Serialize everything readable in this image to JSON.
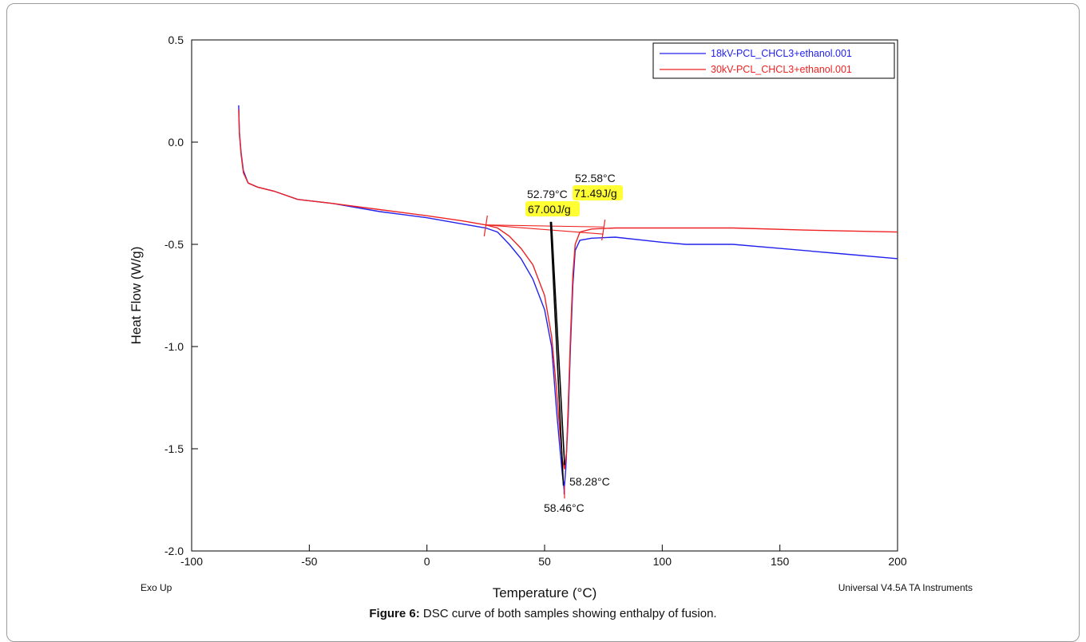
{
  "chart_data": {
    "type": "line",
    "xlabel": "Temperature (°C)",
    "ylabel": "Heat Flow (W/g)",
    "xlim": [
      -100,
      200
    ],
    "ylim": [
      -2.0,
      0.5
    ],
    "x_ticks": [
      -100,
      -50,
      0,
      50,
      100,
      150,
      200
    ],
    "y_ticks": [
      0.5,
      0.0,
      -0.5,
      -1.0,
      -1.5,
      -2.0
    ],
    "x_tick_labels": [
      "-100",
      "-50",
      "0",
      "50",
      "100",
      "150",
      "200"
    ],
    "y_tick_labels": [
      "0.5",
      "0.0",
      "-0.5",
      "-1.0",
      "-1.5",
      "-2.0"
    ],
    "grid": false,
    "legend_position": "top-right",
    "series": [
      {
        "name": "18kV-PCL_CHCL3+ethanol.001",
        "color": "#2222ee",
        "points": [
          [
            -80,
            0.18
          ],
          [
            -79.7,
            0.05
          ],
          [
            -79,
            -0.05
          ],
          [
            -78,
            -0.14
          ],
          [
            -76,
            -0.2
          ],
          [
            -72,
            -0.22
          ],
          [
            -65,
            -0.24
          ],
          [
            -55,
            -0.28
          ],
          [
            -40,
            -0.3
          ],
          [
            -20,
            -0.34
          ],
          [
            0,
            -0.37
          ],
          [
            15,
            -0.4
          ],
          [
            25,
            -0.42
          ],
          [
            30,
            -0.44
          ],
          [
            35,
            -0.5
          ],
          [
            40,
            -0.57
          ],
          [
            45,
            -0.67
          ],
          [
            50,
            -0.82
          ],
          [
            53,
            -1.0
          ],
          [
            55,
            -1.3
          ],
          [
            56.5,
            -1.5
          ],
          [
            57.5,
            -1.62
          ],
          [
            58.3,
            -1.7
          ],
          [
            59,
            -1.6
          ],
          [
            60,
            -1.35
          ],
          [
            61,
            -1.0
          ],
          [
            62,
            -0.7
          ],
          [
            63,
            -0.53
          ],
          [
            65,
            -0.48
          ],
          [
            70,
            -0.47
          ],
          [
            80,
            -0.465
          ],
          [
            100,
            -0.49
          ],
          [
            110,
            -0.5
          ],
          [
            130,
            -0.5
          ],
          [
            150,
            -0.52
          ],
          [
            175,
            -0.545
          ],
          [
            200,
            -0.57
          ]
        ]
      },
      {
        "name": "30kV-PCL_CHCL3+ethanol.001",
        "color": "#ee2222",
        "points": [
          [
            -80,
            0.16
          ],
          [
            -79.7,
            0.04
          ],
          [
            -79,
            -0.06
          ],
          [
            -78,
            -0.15
          ],
          [
            -76,
            -0.2
          ],
          [
            -72,
            -0.22
          ],
          [
            -65,
            -0.24
          ],
          [
            -55,
            -0.28
          ],
          [
            -40,
            -0.3
          ],
          [
            -20,
            -0.33
          ],
          [
            0,
            -0.36
          ],
          [
            15,
            -0.385
          ],
          [
            25,
            -0.405
          ],
          [
            30,
            -0.42
          ],
          [
            35,
            -0.46
          ],
          [
            40,
            -0.52
          ],
          [
            45,
            -0.6
          ],
          [
            50,
            -0.75
          ],
          [
            53,
            -0.95
          ],
          [
            55,
            -1.2
          ],
          [
            56.5,
            -1.42
          ],
          [
            57.5,
            -1.55
          ],
          [
            58.5,
            -1.6
          ],
          [
            59.3,
            -1.52
          ],
          [
            60,
            -1.3
          ],
          [
            61,
            -0.95
          ],
          [
            62,
            -0.65
          ],
          [
            63,
            -0.5
          ],
          [
            65,
            -0.44
          ],
          [
            70,
            -0.425
          ],
          [
            80,
            -0.42
          ],
          [
            100,
            -0.42
          ],
          [
            130,
            -0.42
          ],
          [
            160,
            -0.43
          ],
          [
            200,
            -0.44
          ]
        ]
      }
    ],
    "baselines": [
      {
        "color": "#ee2222",
        "x1": 25,
        "y1": -0.405,
        "x2": 75,
        "y2": -0.45
      },
      {
        "color": "#ee2222",
        "x1": 25,
        "y1": -0.405,
        "x2": 75,
        "y2": -0.415
      }
    ],
    "limit_ticks": [
      {
        "color": "#ee2222",
        "x": 25,
        "y": -0.41
      },
      {
        "color": "#ee2222",
        "x": 75,
        "y": -0.43
      }
    ],
    "onset_lines": [
      {
        "color": "#000000",
        "x1": 52.5,
        "y1": -0.39,
        "x2": 58.0,
        "y2": -1.68
      },
      {
        "color": "#000000",
        "x1": 52.9,
        "y1": -0.39,
        "x2": 58.5,
        "y2": -1.58
      }
    ],
    "peak_ticks": [
      {
        "color": "#2222ee",
        "x": 58.28,
        "y": -1.7
      },
      {
        "color": "#ee2222",
        "x": 58.46,
        "y": -1.72
      }
    ],
    "annotations": {
      "onset_30kv_temp": "52.58°C",
      "enthalpy_30kv": "71.49J/g",
      "onset_18kv_temp": "52.79°C",
      "enthalpy_18kv": "67.00J/g",
      "peak_18kv": "58.28°C",
      "peak_30kv": "58.46°C",
      "highlight_color": "#ffff33"
    },
    "footer_left": "Exo Up",
    "footer_right": "Universal V4.5A TA Instruments"
  },
  "caption": {
    "label": "Figure 6:",
    "text": " DSC curve of both samples showing enthalpy of fusion."
  }
}
